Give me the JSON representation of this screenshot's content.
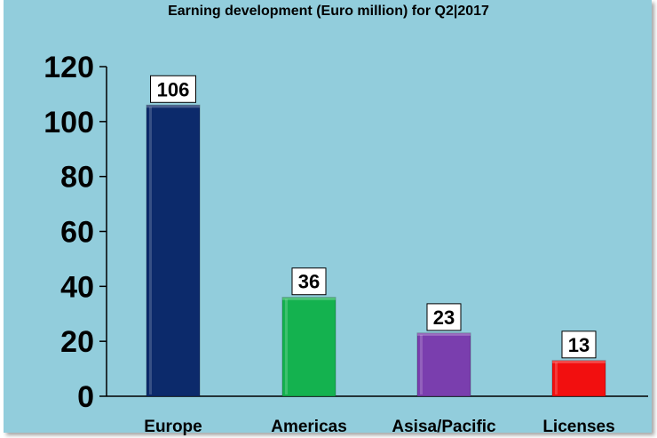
{
  "chart_data": {
    "type": "bar",
    "title": "Earning development (Euro million) for  Q2|2017",
    "categories": [
      "Europe",
      "Americas",
      "Asisa/Pacific",
      "Licenses"
    ],
    "values": [
      106,
      36,
      23,
      13
    ],
    "data_labels": [
      "106",
      "36",
      "23",
      "13"
    ],
    "ylim": [
      0,
      120
    ],
    "yticks": [
      0,
      20,
      40,
      60,
      80,
      100,
      120
    ],
    "ytick_labels": [
      "0",
      "20",
      "40",
      "60",
      "80",
      "100",
      "120"
    ],
    "xlabel": "",
    "ylabel": "",
    "grid": false,
    "legend": "none",
    "colors": {
      "background": "#92cddc",
      "bars": [
        "#0c2a6b",
        "#14b24f",
        "#7a3eae",
        "#f20f0f"
      ],
      "axis": "#000000"
    }
  }
}
